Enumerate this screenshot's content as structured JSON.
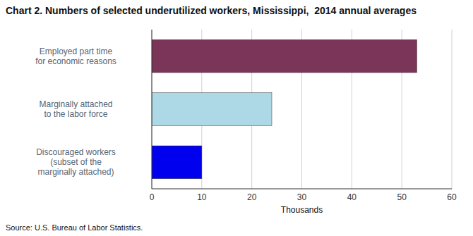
{
  "chart_data": {
    "type": "bar",
    "orientation": "horizontal",
    "title": "Chart 2. Numbers of selected underutilized workers, Mississippi,  2014 annual averages",
    "categories": [
      "Discouraged workers\n(subset of the\nmarginally attached)",
      "Marginally attached\nto the labor force",
      "Employed part time\nfor economic reasons"
    ],
    "values": [
      10,
      24,
      53
    ],
    "colors": [
      "#0000EE",
      "#ADD8E6",
      "#7B3558"
    ],
    "xlim": [
      0,
      60
    ],
    "xticks": [
      0,
      10,
      20,
      30,
      40,
      50,
      60
    ],
    "xlabel": "Thousands",
    "grid": true,
    "annotations": [
      "Source: U.S. Bureau of Labor Statistics."
    ]
  }
}
